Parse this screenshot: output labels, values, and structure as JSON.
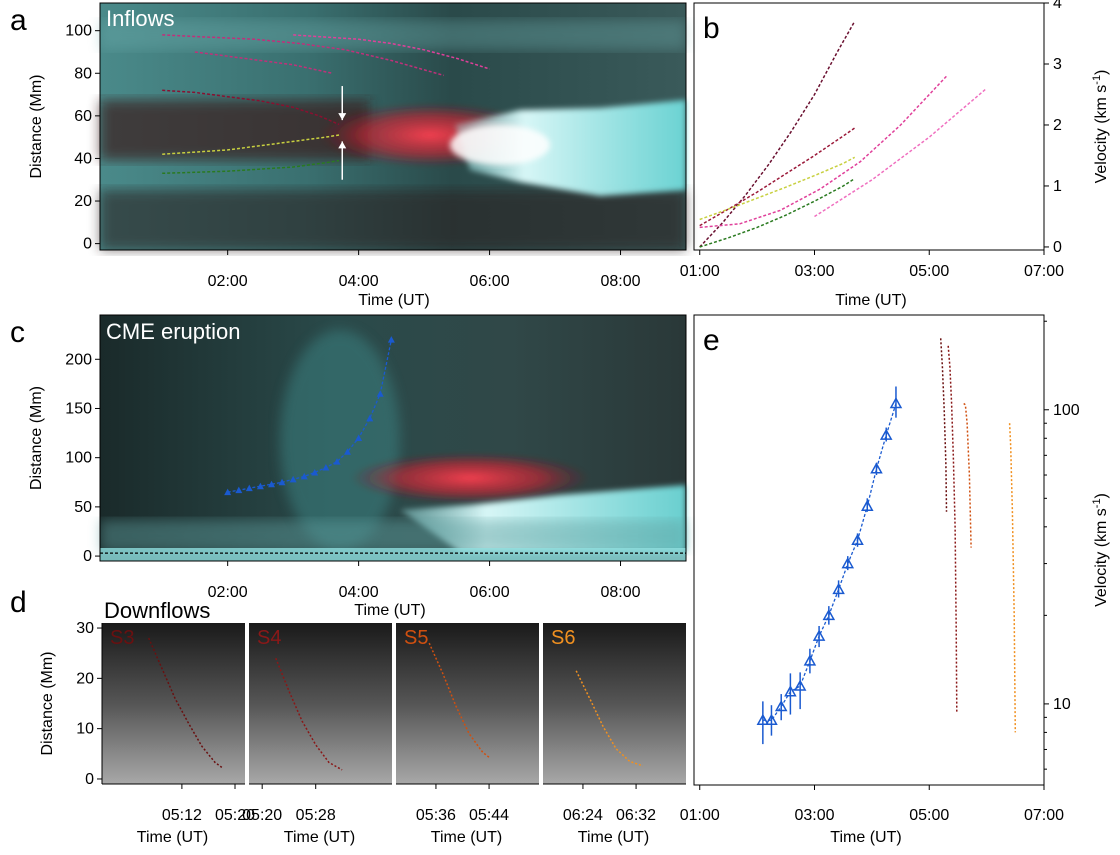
{
  "figure": {
    "panel_letters": {
      "a": "a",
      "b": "b",
      "c": "c",
      "d": "d",
      "e": "e"
    },
    "overlay_labels": {
      "a": "Inflows",
      "c": "CME eruption",
      "d": "Downflows"
    },
    "colors": {
      "inflow1": "#e0409a",
      "inflow2": "#c0307a",
      "inflow3": "#8a1030",
      "inflow4": "#c8d040",
      "inflow5": "#2a7a20",
      "inflow6": "#f070c0",
      "cme": "#1a5ad0",
      "s3": "#6a1010",
      "s4": "#8a1818",
      "s5": "#d05010",
      "s6": "#f09020"
    }
  },
  "chart_data": [
    {
      "id": "a",
      "type": "line",
      "title": "Inflows",
      "xlabel": "Time (UT)",
      "ylabel": "Distance (Mm)",
      "xlim": [
        0.05,
        9.0
      ],
      "ylim": [
        -3,
        113
      ],
      "xticks": [
        {
          "v": 2,
          "label": "02:00"
        },
        {
          "v": 4,
          "label": "04:00"
        },
        {
          "v": 6,
          "label": "06:00"
        },
        {
          "v": 8,
          "label": "08:00"
        }
      ],
      "yticks": [
        0,
        20,
        40,
        60,
        80,
        100
      ],
      "series": [
        {
          "color": "#e0409a",
          "x": [
            3.0,
            3.5,
            4.0,
            4.5,
            5.0,
            5.5,
            6.0
          ],
          "y": [
            98,
            97,
            96,
            94,
            91,
            87,
            82
          ]
        },
        {
          "color": "#c0307a",
          "x": [
            1.0,
            1.7,
            2.4,
            3.1,
            3.8,
            4.5,
            5.3
          ],
          "y": [
            98,
            97,
            96,
            94,
            91,
            86,
            79
          ]
        },
        {
          "color": "#c0307a",
          "x": [
            1.5,
            2.0,
            2.5,
            3.0,
            3.6
          ],
          "y": [
            90,
            88,
            86,
            84,
            80
          ]
        },
        {
          "color": "#8a1030",
          "x": [
            1.0,
            1.5,
            2.0,
            2.5,
            3.0,
            3.4,
            3.7
          ],
          "y": [
            72,
            71,
            69,
            67,
            64,
            60,
            56
          ]
        },
        {
          "color": "#c8d040",
          "x": [
            1.0,
            1.5,
            2.0,
            2.5,
            3.0,
            3.5,
            3.7
          ],
          "y": [
            42,
            43,
            44,
            46,
            48,
            50,
            51
          ]
        },
        {
          "color": "#2a7a20",
          "x": [
            1.0,
            1.5,
            2.0,
            2.5,
            3.0,
            3.5,
            3.7
          ],
          "y": [
            33,
            33.5,
            34,
            35,
            36,
            38,
            39
          ]
        }
      ],
      "annotations": {
        "arrows": [
          {
            "x": 3.75,
            "y_from": 74,
            "y_to": 58
          },
          {
            "x": 3.75,
            "y_from": 30,
            "y_to": 48
          }
        ]
      }
    },
    {
      "id": "b",
      "type": "line",
      "xlabel": "Time (UT)",
      "ylabel": "Velocity (km s-1)",
      "ylabel_main": "Velocity (km s",
      "ylabel_sup": "-1",
      "ylabel_end": ")",
      "xlim": [
        0.9,
        7.0
      ],
      "ylim": [
        -0.05,
        4.0
      ],
      "xticks": [
        {
          "v": 1,
          "label": "01:00"
        },
        {
          "v": 3,
          "label": "03:00"
        },
        {
          "v": 5,
          "label": "05:00"
        },
        {
          "v": 7,
          "label": "07:00"
        }
      ],
      "yticks": [
        0,
        1,
        2,
        3,
        4
      ],
      "series": [
        {
          "color": "#6a1030",
          "x": [
            1.0,
            1.4,
            1.8,
            2.2,
            2.6,
            3.0,
            3.4,
            3.7
          ],
          "y": [
            0.0,
            0.4,
            0.85,
            1.35,
            1.9,
            2.5,
            3.2,
            3.7
          ]
        },
        {
          "color": "#9a1838",
          "x": [
            1.0,
            1.5,
            2.0,
            2.5,
            3.0,
            3.5,
            3.7
          ],
          "y": [
            0.35,
            0.62,
            0.9,
            1.2,
            1.5,
            1.82,
            1.95
          ]
        },
        {
          "color": "#c8d040",
          "x": [
            1.0,
            1.5,
            2.0,
            2.5,
            3.0,
            3.5,
            3.7
          ],
          "y": [
            0.45,
            0.62,
            0.8,
            0.98,
            1.17,
            1.37,
            1.47
          ]
        },
        {
          "color": "#2a7a20",
          "x": [
            1.0,
            1.5,
            2.0,
            2.5,
            3.0,
            3.5,
            3.7
          ],
          "y": [
            0.0,
            0.15,
            0.32,
            0.52,
            0.75,
            1.0,
            1.12
          ]
        },
        {
          "color": "#e0409a",
          "x": [
            1.0,
            1.7,
            2.4,
            3.1,
            3.8,
            4.5,
            5.3
          ],
          "y": [
            0.32,
            0.38,
            0.6,
            0.95,
            1.4,
            2.0,
            2.8
          ]
        },
        {
          "color": "#f070c0",
          "x": [
            3.0,
            3.5,
            4.0,
            4.5,
            5.0,
            5.5,
            6.0
          ],
          "y": [
            0.5,
            0.8,
            1.1,
            1.45,
            1.8,
            2.2,
            2.6
          ]
        }
      ]
    },
    {
      "id": "c",
      "type": "scatter",
      "title": "CME eruption",
      "xlabel": "Time (UT)",
      "ylabel": "Distance (Mm)",
      "xlim": [
        0.05,
        9.0
      ],
      "ylim": [
        -5,
        245
      ],
      "xticks": [
        {
          "v": 2,
          "label": "02:00"
        },
        {
          "v": 4,
          "label": "04:00"
        },
        {
          "v": 6,
          "label": "06:00"
        },
        {
          "v": 8,
          "label": "08:00"
        }
      ],
      "yticks": [
        0,
        50,
        100,
        150,
        200
      ],
      "reference_line_y": 3,
      "series": [
        {
          "color": "#1a5ad0",
          "x": [
            2.0,
            2.17,
            2.33,
            2.5,
            2.67,
            2.83,
            3.0,
            3.17,
            3.33,
            3.5,
            3.67,
            3.83,
            4.0,
            4.17,
            4.33,
            4.5
          ],
          "y": [
            65,
            67,
            69,
            71,
            73,
            75,
            78,
            81,
            85,
            90,
            96,
            106,
            120,
            140,
            165,
            220
          ]
        }
      ]
    },
    {
      "id": "d",
      "type": "line",
      "title": "Downflows",
      "xlabel": "Time (UT)",
      "ylabel": "Distance (Mm)",
      "ylim": [
        -1,
        31
      ],
      "yticks": [
        0,
        10,
        20,
        30
      ],
      "subpanels": [
        {
          "label": "S3",
          "color": "#6a1010",
          "xlim": [
            5.0,
            5.358
          ],
          "xticks": [
            {
              "v": 5.2,
              "label": "05:12"
            },
            {
              "v": 5.333,
              "label": "05:20"
            }
          ],
          "x": [
            5.117,
            5.15,
            5.183,
            5.217,
            5.25,
            5.283,
            5.3
          ],
          "y": [
            28,
            22,
            16,
            11,
            6.5,
            3.3,
            2.3
          ]
        },
        {
          "label": "S4",
          "color": "#8a1818",
          "xlim": [
            5.3,
            5.658
          ],
          "xticks": [
            {
              "v": 5.333,
              "label": "05:20"
            },
            {
              "v": 5.467,
              "label": "05:28"
            }
          ],
          "x": [
            5.367,
            5.4,
            5.433,
            5.467,
            5.5,
            5.533
          ],
          "y": [
            24,
            17.5,
            11.5,
            6.8,
            3.3,
            1.8
          ]
        },
        {
          "label": "S5",
          "color": "#d05010",
          "xlim": [
            5.5,
            5.858
          ],
          "xticks": [
            {
              "v": 5.6,
              "label": "05:36"
            },
            {
              "v": 5.733,
              "label": "05:44"
            }
          ],
          "x": [
            5.583,
            5.617,
            5.65,
            5.683,
            5.717,
            5.733
          ],
          "y": [
            27,
            21,
            14.5,
            9,
            5.3,
            4.3
          ]
        },
        {
          "label": "S6",
          "color": "#f09020",
          "xlim": [
            6.3,
            6.658
          ],
          "xticks": [
            {
              "v": 6.4,
              "label": "06:24"
            },
            {
              "v": 6.533,
              "label": "06:32"
            }
          ],
          "x": [
            6.383,
            6.417,
            6.45,
            6.483,
            6.517,
            6.55
          ],
          "y": [
            21.5,
            16,
            10.5,
            6,
            3.5,
            2.6
          ]
        }
      ]
    },
    {
      "id": "e",
      "type": "scatter",
      "xlabel": "Time (UT)",
      "ylabel": "Velocity (km s-1)",
      "ylabel_main": "Velocity (km s",
      "ylabel_sup": "-1",
      "ylabel_end": ")",
      "yscale": "log",
      "xlim": [
        0.9,
        7.0
      ],
      "ylim": [
        5.3,
        210
      ],
      "xticks": [
        {
          "v": 1,
          "label": "01:00"
        },
        {
          "v": 3,
          "label": "03:00"
        },
        {
          "v": 5,
          "label": "05:00"
        },
        {
          "v": 7,
          "label": "07:00"
        }
      ],
      "yticks": [
        {
          "v": 10,
          "label": "10"
        },
        {
          "v": 100,
          "label": "100"
        }
      ],
      "cme_series": {
        "color": "#1a5ad0",
        "x": [
          2.1,
          2.25,
          2.42,
          2.58,
          2.75,
          2.92,
          3.08,
          3.25,
          3.42,
          3.58,
          3.75,
          3.92,
          4.08,
          4.25,
          4.42
        ],
        "y": [
          8.8,
          8.8,
          9.8,
          11.0,
          11.5,
          14.0,
          17.0,
          20.0,
          24.5,
          30.0,
          36.0,
          47.0,
          63.0,
          82.0,
          105.0
        ],
        "err_low": [
          7.3,
          7.8,
          8.8,
          9.2,
          9.6,
          12.7,
          15.6,
          18.6,
          23.0,
          28.5,
          34.2,
          45.0,
          60.0,
          78.0,
          94.0
        ],
        "err_high": [
          10.2,
          9.9,
          10.8,
          12.7,
          12.8,
          15.4,
          18.4,
          21.5,
          26.3,
          31.8,
          38.0,
          50.0,
          66.0,
          87.0,
          120.0
        ]
      },
      "downflows": [
        {
          "name": "S3",
          "color": "#6a1010",
          "x": [
            5.2,
            5.23,
            5.26,
            5.29,
            5.3
          ],
          "y": [
            175,
            140,
            100,
            65,
            45
          ]
        },
        {
          "name": "S4",
          "color": "#8a1818",
          "x": [
            5.33,
            5.36,
            5.39,
            5.42,
            5.45,
            5.47,
            5.48
          ],
          "y": [
            165,
            140,
            105,
            70,
            40,
            18,
            9.3
          ]
        },
        {
          "name": "S5",
          "color": "#d05010",
          "x": [
            5.6,
            5.63,
            5.66,
            5.7,
            5.73
          ],
          "y": [
            105,
            104,
            90,
            60,
            34
          ]
        },
        {
          "name": "S6",
          "color": "#f09020",
          "x": [
            6.4,
            6.42,
            6.45,
            6.48,
            6.5
          ],
          "y": [
            90,
            75,
            45,
            20,
            8
          ]
        }
      ]
    }
  ]
}
